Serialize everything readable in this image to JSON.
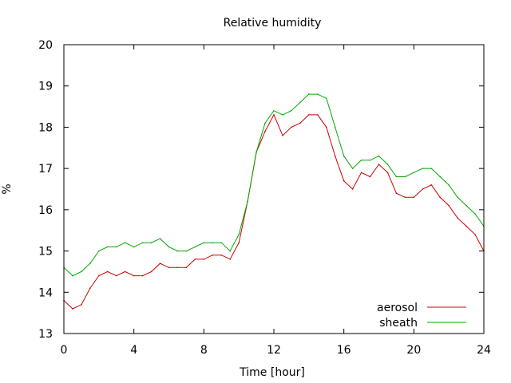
{
  "chart_data": {
    "type": "line",
    "title": "Relative humidity",
    "xlabel": "Time [hour]",
    "ylabel": "%",
    "xlim": [
      0,
      24
    ],
    "ylim": [
      13,
      20
    ],
    "xticks": [
      0,
      4,
      8,
      12,
      16,
      20,
      24
    ],
    "yticks": [
      13,
      14,
      15,
      16,
      17,
      18,
      19,
      20
    ],
    "grid": false,
    "legend_position": "bottom-right",
    "series": [
      {
        "name": "aerosol",
        "color": "#cc0000",
        "x": [
          0,
          0.5,
          1,
          1.5,
          2,
          2.5,
          3,
          3.5,
          4,
          4.5,
          5,
          5.5,
          6,
          6.5,
          7,
          7.5,
          8,
          8.5,
          9,
          9.5,
          10,
          10.5,
          11,
          11.5,
          12,
          12.5,
          13,
          13.5,
          14,
          14.5,
          15,
          15.5,
          16,
          16.5,
          17,
          17.5,
          18,
          18.5,
          19,
          19.5,
          20,
          20.5,
          21,
          21.5,
          22,
          22.5,
          23,
          23.5,
          24
        ],
        "y": [
          13.8,
          13.6,
          13.7,
          14.1,
          14.4,
          14.5,
          14.4,
          14.5,
          14.4,
          14.4,
          14.5,
          14.7,
          14.6,
          14.6,
          14.6,
          14.8,
          14.8,
          14.9,
          14.9,
          14.8,
          15.2,
          16.2,
          17.4,
          17.9,
          18.3,
          17.8,
          18.0,
          18.1,
          18.3,
          18.3,
          18.0,
          17.3,
          16.7,
          16.5,
          16.9,
          16.8,
          17.1,
          16.9,
          16.4,
          16.3,
          16.3,
          16.5,
          16.6,
          16.3,
          16.1,
          15.8,
          15.6,
          15.4,
          15.0
        ]
      },
      {
        "name": "sheath",
        "color": "#00aa00",
        "x": [
          0,
          0.5,
          1,
          1.5,
          2,
          2.5,
          3,
          3.5,
          4,
          4.5,
          5,
          5.5,
          6,
          6.5,
          7,
          7.5,
          8,
          8.5,
          9,
          9.5,
          10,
          10.5,
          11,
          11.5,
          12,
          12.5,
          13,
          13.5,
          14,
          14.5,
          15,
          15.5,
          16,
          16.5,
          17,
          17.5,
          18,
          18.5,
          19,
          19.5,
          20,
          20.5,
          21,
          21.5,
          22,
          22.5,
          23,
          23.5,
          24
        ],
        "y": [
          14.6,
          14.4,
          14.5,
          14.7,
          15.0,
          15.1,
          15.1,
          15.2,
          15.1,
          15.2,
          15.2,
          15.3,
          15.1,
          15.0,
          15.0,
          15.1,
          15.2,
          15.2,
          15.2,
          15.0,
          15.4,
          16.2,
          17.4,
          18.1,
          18.4,
          18.3,
          18.4,
          18.6,
          18.8,
          18.8,
          18.7,
          18.0,
          17.3,
          17.0,
          17.2,
          17.2,
          17.3,
          17.1,
          16.8,
          16.8,
          16.9,
          17.0,
          17.0,
          16.8,
          16.6,
          16.3,
          16.1,
          15.9,
          15.6
        ]
      }
    ]
  }
}
